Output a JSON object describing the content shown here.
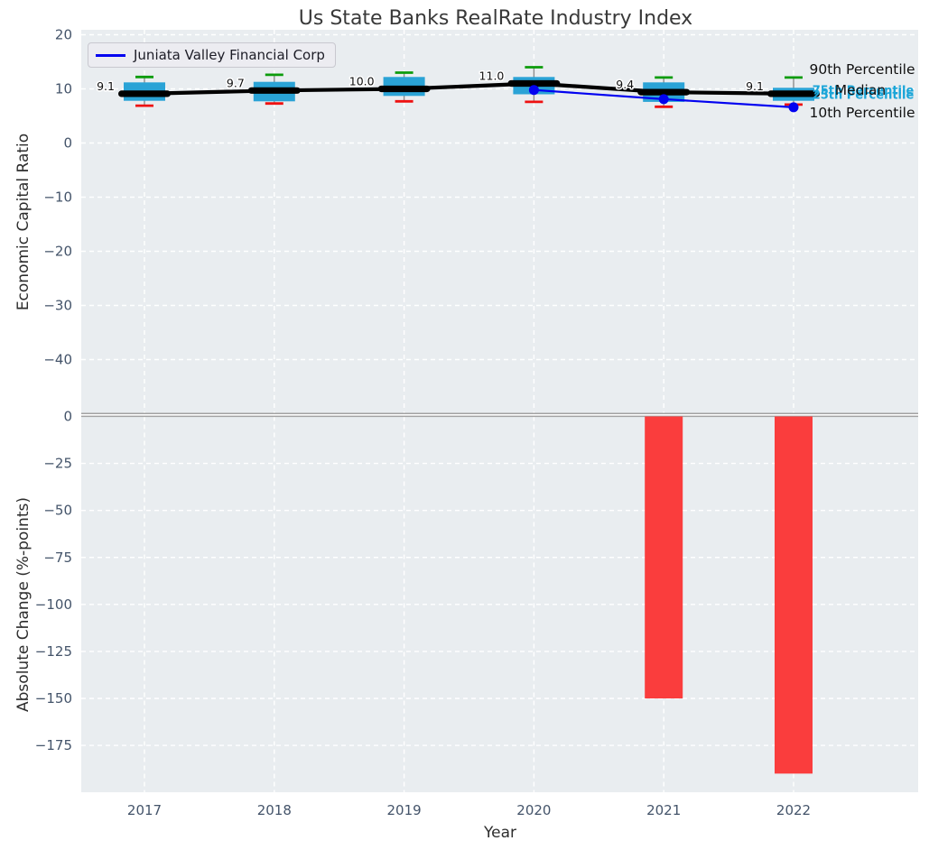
{
  "title": "Us State Banks RealRate Industry Index",
  "legend": {
    "series_label": "Juniata Valley Financial Corp"
  },
  "percentile_labels": {
    "p90": "90th Percentile",
    "p75": "75th Percentile",
    "median": "Median",
    "p25": "25th Percentile",
    "p10": "10th Percentile"
  },
  "colors": {
    "panel_bg": "#e9edf0",
    "box_fill": "#2aa3d6",
    "whisker": "#8c8c8c",
    "cap_high": "#0c9c0c",
    "cap_low": "#ee1111",
    "median_line": "#000000",
    "company_line": "#0202f0",
    "bar_negative": "#fa3d3d",
    "grid": "#ffffff",
    "tick_label": "#44546a",
    "percentile_cyan": "#1aa5d8",
    "title_color": "#393939",
    "zero_line": "#a2a2a2"
  },
  "chart_data": [
    {
      "type": "boxplot",
      "title": "Us State Banks RealRate Industry Index",
      "ylabel": "Economic Capital Ratio",
      "ylim": [
        -50,
        21
      ],
      "yticks": [
        20,
        10,
        0,
        -10,
        -20,
        -30,
        -40
      ],
      "grid": true,
      "categories": [
        "2017",
        "2018",
        "2019",
        "2020",
        "2021",
        "2022"
      ],
      "boxes": [
        {
          "category": "2017",
          "p90": 12.2,
          "p75": 11.2,
          "median": 9.1,
          "p25": 7.8,
          "p10": 6.9,
          "median_label": "9.1"
        },
        {
          "category": "2018",
          "p90": 12.6,
          "p75": 11.3,
          "median": 9.7,
          "p25": 7.7,
          "p10": 7.3,
          "median_label": "9.7"
        },
        {
          "category": "2019",
          "p90": 13.0,
          "p75": 12.2,
          "median": 10.0,
          "p25": 8.7,
          "p10": 7.7,
          "median_label": "10.0"
        },
        {
          "category": "2020",
          "p90": 14.0,
          "p75": 12.2,
          "median": 11.0,
          "p25": 9.0,
          "p10": 7.6,
          "median_label": "11.0"
        },
        {
          "category": "2021",
          "p90": 12.1,
          "p75": 11.2,
          "median": 9.4,
          "p25": 7.6,
          "p10": 6.7,
          "median_label": "9.4"
        },
        {
          "category": "2022",
          "p90": 12.1,
          "p75": 10.2,
          "median": 9.1,
          "p25": 7.8,
          "p10": 7.1,
          "median_label": "9.1"
        }
      ],
      "series": [
        {
          "name": "Juniata Valley Financial Corp",
          "color": "#0202f0",
          "points": [
            {
              "x": "2020",
              "y": 9.8
            },
            {
              "x": "2021",
              "y": 8.1
            },
            {
              "x": "2022",
              "y": 6.6
            }
          ]
        }
      ]
    },
    {
      "type": "bar",
      "ylabel": "Absolute Change (%-points)",
      "xlabel": "Year",
      "ylim": [
        -200,
        0
      ],
      "yticks": [
        0,
        -25,
        -50,
        -75,
        -100,
        -125,
        -150,
        -175
      ],
      "grid": true,
      "categories": [
        "2017",
        "2018",
        "2019",
        "2020",
        "2021",
        "2022"
      ],
      "values": [
        0,
        0,
        0,
        0,
        -150,
        -190
      ],
      "bar_color": "#fa3d3d"
    }
  ]
}
